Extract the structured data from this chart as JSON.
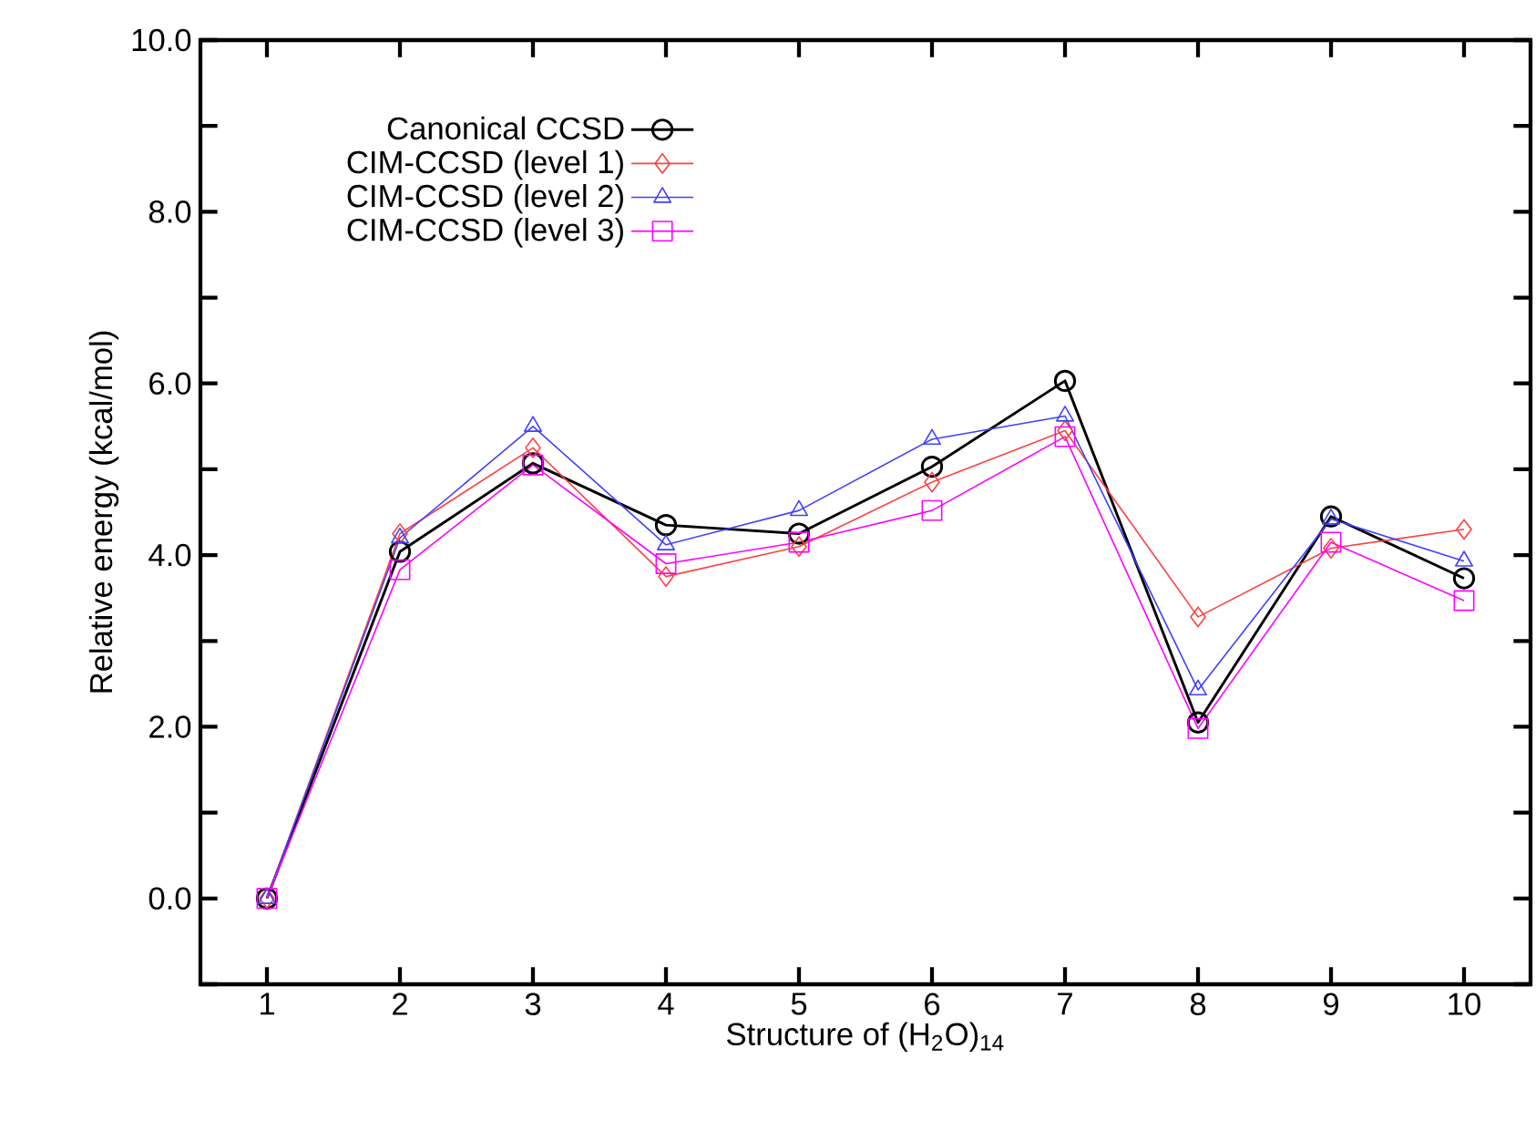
{
  "chart_data": {
    "type": "line",
    "xlabel": "Structure of (H$_{2}$O)$_{14}$",
    "ylabel": "Relative energy (kcal/mol)",
    "x": [
      1,
      2,
      3,
      4,
      5,
      6,
      7,
      8,
      9,
      10
    ],
    "xlim": [
      0.5,
      10.5
    ],
    "xticks": [
      1,
      2,
      3,
      4,
      5,
      6,
      7,
      8,
      9,
      10
    ],
    "ylim": [
      -1.0,
      10.0
    ],
    "yticks": [
      {
        "value": -1.0,
        "label": null
      },
      {
        "value": 0.0,
        "label": "0.0"
      },
      {
        "value": 1.0,
        "label": null
      },
      {
        "value": 2.0,
        "label": "2.0"
      },
      {
        "value": 3.0,
        "label": null
      },
      {
        "value": 4.0,
        "label": "4.0"
      },
      {
        "value": 5.0,
        "label": null
      },
      {
        "value": 6.0,
        "label": "6.0"
      },
      {
        "value": 7.0,
        "label": null
      },
      {
        "value": 8.0,
        "label": "8.0"
      },
      {
        "value": 9.0,
        "label": null
      },
      {
        "value": 10.0,
        "label": "10.0"
      }
    ],
    "legend": "top left",
    "grid": false,
    "line_style": "solid",
    "series": [
      {
        "name": "Canonical CCSD",
        "color": "#000000",
        "marker": "circle",
        "values": [
          0.0,
          4.04,
          5.07,
          4.35,
          4.25,
          5.03,
          6.03,
          2.05,
          4.45,
          3.73
        ]
      },
      {
        "name": "CIM-CCSD (level 1)",
        "color": "#ff4040",
        "marker": "diamond",
        "values": [
          0.0,
          4.25,
          5.25,
          3.75,
          4.1,
          4.85,
          5.45,
          3.28,
          4.08,
          4.3
        ]
      },
      {
        "name": "CIM-CCSD (level 2)",
        "color": "#4040ff",
        "marker": "triangle",
        "values": [
          0.0,
          4.2,
          5.5,
          4.12,
          4.52,
          5.35,
          5.62,
          2.43,
          4.42,
          3.93
        ]
      },
      {
        "name": "CIM-CCSD (level 3)",
        "color": "#ff00ff",
        "marker": "square",
        "values": [
          0.0,
          3.83,
          5.05,
          3.9,
          4.15,
          4.52,
          5.38,
          1.98,
          4.15,
          3.47
        ]
      }
    ]
  }
}
